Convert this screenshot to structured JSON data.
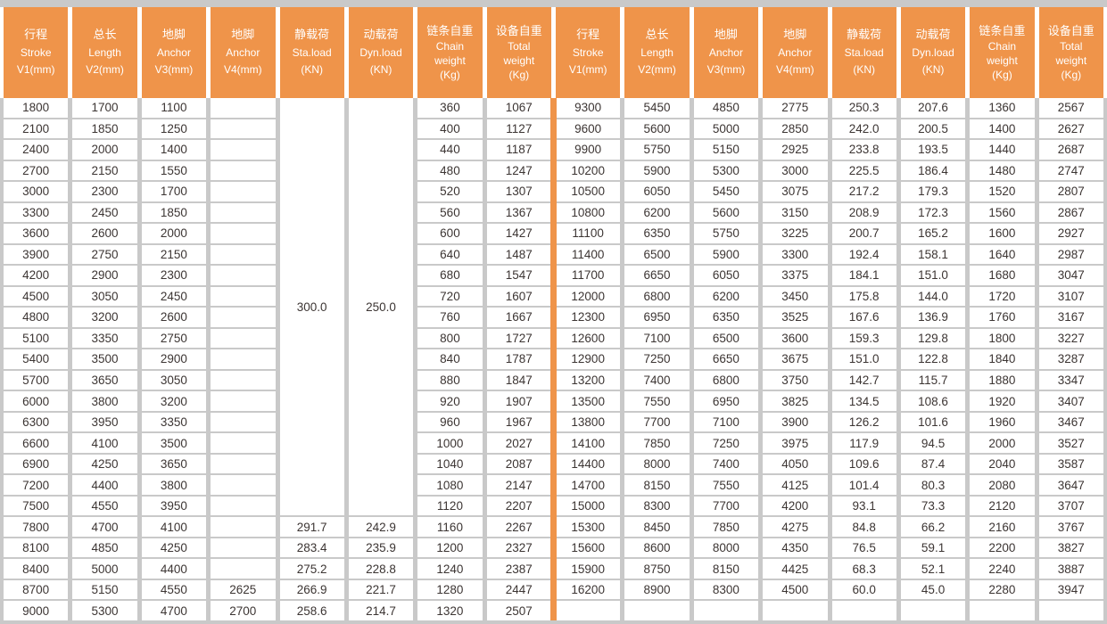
{
  "colors": {
    "header_bg": "#ef944a",
    "header_text": "#ffffff",
    "cell_bg": "#ffffff",
    "grid_bg": "#c9c9c9",
    "body_text": "#3c3533",
    "divider": "#ef944a"
  },
  "table": {
    "header_columns": [
      {
        "key": "stroke",
        "lines": [
          "行程",
          "Stroke",
          "V1(mm)"
        ]
      },
      {
        "key": "length",
        "lines": [
          "总长",
          "Length",
          "V2(mm)"
        ]
      },
      {
        "key": "anchor-v3",
        "lines": [
          "地脚",
          "Anchor",
          "V3(mm)"
        ]
      },
      {
        "key": "anchor-v4",
        "lines": [
          "地脚",
          "Anchor",
          "V4(mm)"
        ]
      },
      {
        "key": "static-load",
        "lines": [
          "静载荷",
          "Sta.load",
          "(KN)"
        ]
      },
      {
        "key": "dynamic-load",
        "lines": [
          "动载荷",
          "Dyn.load",
          "(KN)"
        ]
      },
      {
        "key": "chain-weight",
        "lines": [
          "链条自重",
          "Chain",
          "weight",
          "(Kg)"
        ]
      },
      {
        "key": "total-weight",
        "lines": [
          "设备自重",
          "Total",
          "weight",
          "(Kg)"
        ]
      }
    ],
    "merged": {
      "sta_load": "300.0",
      "dyn_load": "250.0",
      "row_span": 20
    },
    "left_rows": [
      [
        "1800",
        "1700",
        "1100",
        "",
        null,
        null,
        "360",
        "1067"
      ],
      [
        "2100",
        "1850",
        "1250",
        "",
        null,
        null,
        "400",
        "1127"
      ],
      [
        "2400",
        "2000",
        "1400",
        "",
        null,
        null,
        "440",
        "1187"
      ],
      [
        "2700",
        "2150",
        "1550",
        "",
        null,
        null,
        "480",
        "1247"
      ],
      [
        "3000",
        "2300",
        "1700",
        "",
        null,
        null,
        "520",
        "1307"
      ],
      [
        "3300",
        "2450",
        "1850",
        "",
        null,
        null,
        "560",
        "1367"
      ],
      [
        "3600",
        "2600",
        "2000",
        "",
        null,
        null,
        "600",
        "1427"
      ],
      [
        "3900",
        "2750",
        "2150",
        "",
        null,
        null,
        "640",
        "1487"
      ],
      [
        "4200",
        "2900",
        "2300",
        "",
        null,
        null,
        "680",
        "1547"
      ],
      [
        "4500",
        "3050",
        "2450",
        "",
        null,
        null,
        "720",
        "1607"
      ],
      [
        "4800",
        "3200",
        "2600",
        "",
        null,
        null,
        "760",
        "1667"
      ],
      [
        "5100",
        "3350",
        "2750",
        "",
        null,
        null,
        "800",
        "1727"
      ],
      [
        "5400",
        "3500",
        "2900",
        "",
        null,
        null,
        "840",
        "1787"
      ],
      [
        "5700",
        "3650",
        "3050",
        "",
        null,
        null,
        "880",
        "1847"
      ],
      [
        "6000",
        "3800",
        "3200",
        "",
        null,
        null,
        "920",
        "1907"
      ],
      [
        "6300",
        "3950",
        "3350",
        "",
        null,
        null,
        "960",
        "1967"
      ],
      [
        "6600",
        "4100",
        "3500",
        "",
        null,
        null,
        "1000",
        "2027"
      ],
      [
        "6900",
        "4250",
        "3650",
        "",
        null,
        null,
        "1040",
        "2087"
      ],
      [
        "7200",
        "4400",
        "3800",
        "",
        null,
        null,
        "1080",
        "2147"
      ],
      [
        "7500",
        "4550",
        "3950",
        "",
        null,
        null,
        "1120",
        "2207"
      ],
      [
        "7800",
        "4700",
        "4100",
        "",
        "291.7",
        "242.9",
        "1160",
        "2267"
      ],
      [
        "8100",
        "4850",
        "4250",
        "",
        "283.4",
        "235.9",
        "1200",
        "2327"
      ],
      [
        "8400",
        "5000",
        "4400",
        "",
        "275.2",
        "228.8",
        "1240",
        "2387"
      ],
      [
        "8700",
        "5150",
        "4550",
        "2625",
        "266.9",
        "221.7",
        "1280",
        "2447"
      ],
      [
        "9000",
        "5300",
        "4700",
        "2700",
        "258.6",
        "214.7",
        "1320",
        "2507"
      ]
    ],
    "right_rows": [
      [
        "9300",
        "5450",
        "4850",
        "2775",
        "250.3",
        "207.6",
        "1360",
        "2567"
      ],
      [
        "9600",
        "5600",
        "5000",
        "2850",
        "242.0",
        "200.5",
        "1400",
        "2627"
      ],
      [
        "9900",
        "5750",
        "5150",
        "2925",
        "233.8",
        "193.5",
        "1440",
        "2687"
      ],
      [
        "10200",
        "5900",
        "5300",
        "3000",
        "225.5",
        "186.4",
        "1480",
        "2747"
      ],
      [
        "10500",
        "6050",
        "5450",
        "3075",
        "217.2",
        "179.3",
        "1520",
        "2807"
      ],
      [
        "10800",
        "6200",
        "5600",
        "3150",
        "208.9",
        "172.3",
        "1560",
        "2867"
      ],
      [
        "11100",
        "6350",
        "5750",
        "3225",
        "200.7",
        "165.2",
        "1600",
        "2927"
      ],
      [
        "11400",
        "6500",
        "5900",
        "3300",
        "192.4",
        "158.1",
        "1640",
        "2987"
      ],
      [
        "11700",
        "6650",
        "6050",
        "3375",
        "184.1",
        "151.0",
        "1680",
        "3047"
      ],
      [
        "12000",
        "6800",
        "6200",
        "3450",
        "175.8",
        "144.0",
        "1720",
        "3107"
      ],
      [
        "12300",
        "6950",
        "6350",
        "3525",
        "167.6",
        "136.9",
        "1760",
        "3167"
      ],
      [
        "12600",
        "7100",
        "6500",
        "3600",
        "159.3",
        "129.8",
        "1800",
        "3227"
      ],
      [
        "12900",
        "7250",
        "6650",
        "3675",
        "151.0",
        "122.8",
        "1840",
        "3287"
      ],
      [
        "13200",
        "7400",
        "6800",
        "3750",
        "142.7",
        "115.7",
        "1880",
        "3347"
      ],
      [
        "13500",
        "7550",
        "6950",
        "3825",
        "134.5",
        "108.6",
        "1920",
        "3407"
      ],
      [
        "13800",
        "7700",
        "7100",
        "3900",
        "126.2",
        "101.6",
        "1960",
        "3467"
      ],
      [
        "14100",
        "7850",
        "7250",
        "3975",
        "117.9",
        "94.5",
        "2000",
        "3527"
      ],
      [
        "14400",
        "8000",
        "7400",
        "4050",
        "109.6",
        "87.4",
        "2040",
        "3587"
      ],
      [
        "14700",
        "8150",
        "7550",
        "4125",
        "101.4",
        "80.3",
        "2080",
        "3647"
      ],
      [
        "15000",
        "8300",
        "7700",
        "4200",
        "93.1",
        "73.3",
        "2120",
        "3707"
      ],
      [
        "15300",
        "8450",
        "7850",
        "4275",
        "84.8",
        "66.2",
        "2160",
        "3767"
      ],
      [
        "15600",
        "8600",
        "8000",
        "4350",
        "76.5",
        "59.1",
        "2200",
        "3827"
      ],
      [
        "15900",
        "8750",
        "8150",
        "4425",
        "68.3",
        "52.1",
        "2240",
        "3887"
      ],
      [
        "16200",
        "8900",
        "8300",
        "4500",
        "60.0",
        "45.0",
        "2280",
        "3947"
      ],
      [
        "",
        "",
        "",
        "",
        "",
        "",
        "",
        ""
      ]
    ]
  }
}
